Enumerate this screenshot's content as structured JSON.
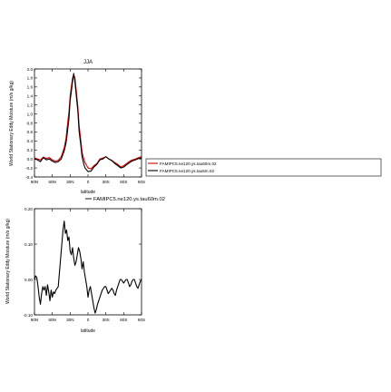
{
  "chart_data": [
    {
      "type": "line",
      "title": "JJA",
      "xlabel": "latitude",
      "ylabel": "World Stationary Eddy Moisture (m/s g/kg)",
      "xlim": [
        -90,
        90
      ],
      "ylim": [
        -0.4,
        2.0
      ],
      "x_ticks": [
        -90,
        -60,
        -30,
        0,
        30,
        60,
        90
      ],
      "x_tick_labels": [
        "90N",
        "60N",
        "30N",
        "0",
        "30S",
        "60S",
        "90S"
      ],
      "y_ticks": [
        -0.4,
        -0.2,
        0.0,
        0.2,
        0.4,
        0.6,
        0.8,
        1.0,
        1.2,
        1.4,
        1.6,
        1.8,
        2.0
      ],
      "y_tick_labels": [
        "-0.4",
        "-0.2",
        "0.0",
        "0.2",
        "0.4",
        "0.6",
        "0.8",
        "1.0",
        "1.2",
        "1.4",
        "1.6",
        "1.8",
        "2.0"
      ],
      "legend_placement": "right",
      "series": [
        {
          "name": "FAMIPC5.ne120.ys.tau60m.02",
          "color": "#d40000",
          "x": [
            -90,
            -85,
            -80,
            -75,
            -70,
            -65,
            -60,
            -55,
            -50,
            -45,
            -40,
            -37,
            -35,
            -32,
            -30,
            -28,
            -26,
            -24,
            -22,
            -20,
            -17,
            -15,
            -12,
            -10,
            -7,
            -5,
            -2,
            0,
            5,
            10,
            15,
            20,
            25,
            30,
            35,
            40,
            45,
            50,
            55,
            60,
            65,
            70,
            75,
            80,
            85,
            90
          ],
          "y": [
            0.02,
            0.0,
            -0.02,
            0.04,
            0.01,
            0.03,
            -0.02,
            -0.05,
            -0.03,
            0.05,
            0.25,
            0.45,
            0.7,
            1.05,
            1.4,
            1.6,
            1.8,
            1.87,
            1.8,
            1.55,
            1.15,
            0.75,
            0.4,
            0.15,
            0.0,
            -0.08,
            -0.15,
            -0.2,
            -0.22,
            -0.15,
            -0.1,
            0.0,
            0.02,
            0.05,
            0.0,
            -0.03,
            -0.08,
            -0.12,
            -0.18,
            -0.15,
            -0.1,
            -0.05,
            -0.02,
            0.0,
            0.03,
            0.05
          ]
        },
        {
          "name": "FAMIPC5.ne120.ys.tau5m.02",
          "color": "#000000",
          "x": [
            -90,
            -85,
            -80,
            -75,
            -70,
            -65,
            -60,
            -55,
            -50,
            -45,
            -40,
            -37,
            -35,
            -32,
            -30,
            -28,
            -26,
            -24,
            -22,
            -20,
            -17,
            -15,
            -12,
            -10,
            -7,
            -5,
            -2,
            0,
            5,
            10,
            15,
            20,
            25,
            30,
            35,
            40,
            45,
            50,
            55,
            60,
            65,
            70,
            75,
            80,
            85,
            90
          ],
          "y": [
            0.0,
            -0.02,
            -0.06,
            0.03,
            -0.02,
            0.0,
            -0.05,
            -0.08,
            -0.06,
            0.0,
            0.18,
            0.35,
            0.55,
            0.9,
            1.3,
            1.5,
            1.72,
            1.9,
            1.72,
            1.45,
            1.05,
            0.62,
            0.3,
            0.05,
            -0.12,
            -0.2,
            -0.25,
            -0.28,
            -0.27,
            -0.18,
            -0.12,
            -0.02,
            0.0,
            0.05,
            0.0,
            -0.04,
            -0.1,
            -0.15,
            -0.2,
            -0.18,
            -0.13,
            -0.08,
            -0.04,
            -0.02,
            0.01,
            0.02
          ]
        }
      ]
    },
    {
      "type": "line",
      "title": "",
      "xlabel": "latitude",
      "ylabel": "World Stationary Eddy Moisture (m/s g/kg)",
      "xlim": [
        -90,
        90
      ],
      "ylim": [
        -0.1,
        0.2
      ],
      "x_ticks": [
        -90,
        -60,
        -30,
        0,
        30,
        60,
        90
      ],
      "x_tick_labels": [
        "90N",
        "60N",
        "30N",
        "0",
        "30S",
        "60S",
        "90S"
      ],
      "y_ticks": [
        -0.1,
        0.0,
        0.1,
        0.2
      ],
      "y_tick_labels": [
        "-0.10",
        "0.00",
        "0.10",
        "0.20"
      ],
      "legend_placement": "top",
      "series": [
        {
          "name": "FAMIPC5.ne120.ys.tau60m.02",
          "color": "#000000",
          "x": [
            -90,
            -88,
            -86,
            -84,
            -82,
            -80,
            -78,
            -76,
            -74,
            -72,
            -70,
            -68,
            -66,
            -64,
            -62,
            -60,
            -58,
            -56,
            -54,
            -52,
            -50,
            -48,
            -46,
            -44,
            -42,
            -40,
            -38,
            -36,
            -34,
            -32,
            -30,
            -28,
            -26,
            -24,
            -22,
            -20,
            -18,
            -16,
            -14,
            -12,
            -10,
            -8,
            -6,
            -4,
            -2,
            0,
            2,
            4,
            6,
            8,
            10,
            12,
            14,
            16,
            18,
            20,
            22,
            24,
            26,
            28,
            30,
            32,
            34,
            36,
            38,
            40,
            42,
            44,
            46,
            48,
            50,
            52,
            54,
            56,
            58,
            60,
            62,
            64,
            66,
            68,
            70,
            72,
            74,
            76,
            78,
            80,
            82,
            84,
            86,
            88,
            90
          ],
          "y": [
            0.0,
            0.01,
            0.005,
            -0.02,
            -0.05,
            -0.07,
            -0.04,
            -0.02,
            -0.03,
            -0.02,
            -0.045,
            -0.015,
            -0.035,
            -0.06,
            -0.03,
            -0.05,
            -0.035,
            -0.04,
            -0.03,
            -0.025,
            -0.02,
            0.02,
            0.06,
            0.1,
            0.14,
            0.165,
            0.13,
            0.14,
            0.11,
            0.12,
            0.08,
            0.07,
            0.09,
            0.06,
            0.04,
            0.05,
            0.07,
            0.09,
            0.08,
            0.06,
            0.03,
            0.05,
            0.02,
            0.0,
            -0.02,
            -0.05,
            -0.03,
            -0.02,
            -0.04,
            -0.06,
            -0.08,
            -0.095,
            -0.085,
            -0.07,
            -0.06,
            -0.05,
            -0.04,
            -0.03,
            -0.025,
            -0.02,
            -0.02,
            -0.03,
            -0.04,
            -0.035,
            -0.03,
            -0.025,
            -0.03,
            -0.04,
            -0.045,
            -0.03,
            -0.02,
            -0.01,
            0.0,
            0.0,
            -0.005,
            -0.01,
            -0.005,
            0.0,
            0.0,
            -0.01,
            -0.02,
            -0.015,
            -0.005,
            0.0,
            0.0,
            -0.01,
            -0.02,
            -0.025,
            -0.015,
            -0.005,
            0.0
          ]
        }
      ]
    }
  ]
}
